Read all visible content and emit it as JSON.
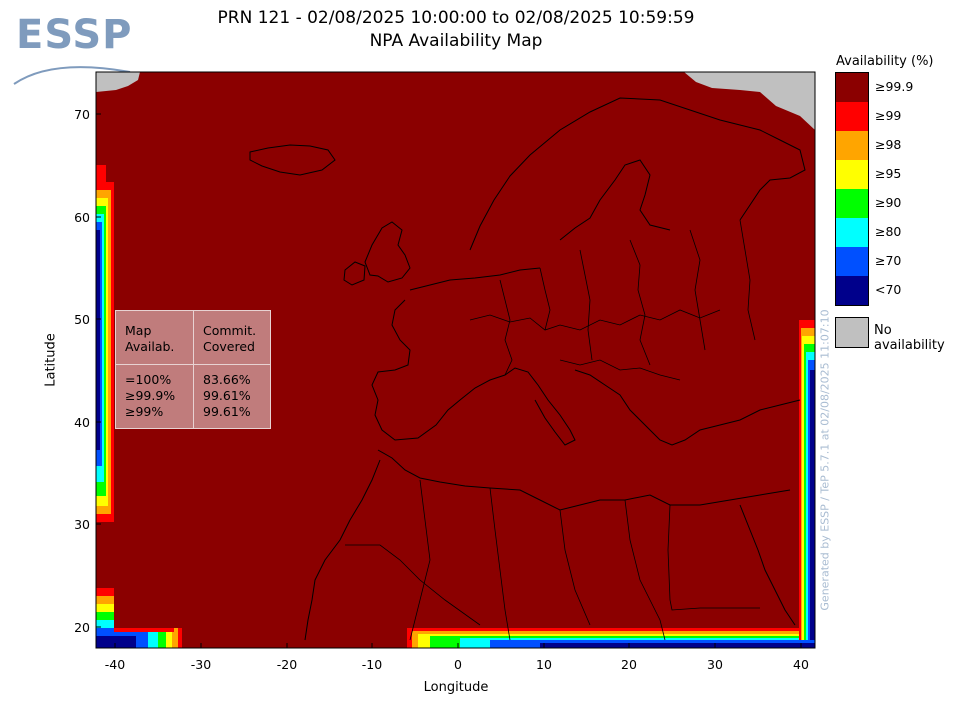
{
  "header": {
    "logo_text": "ESSP",
    "title_line1": "PRN 121 - 02/08/2025 10:00:00 to 02/08/2025 10:59:59",
    "title_line2": "NPA Availability Map"
  },
  "axes": {
    "xlabel": "Longitude",
    "ylabel": "Latitude",
    "x_ticks": [
      "-40",
      "-30",
      "-20",
      "-10",
      "0",
      "10",
      "20",
      "30",
      "40"
    ],
    "y_ticks": [
      "70",
      "60",
      "50",
      "40",
      "30",
      "20"
    ],
    "lon_range": [
      -42,
      41
    ],
    "lat_range": [
      18,
      74.5
    ]
  },
  "legend": {
    "title": "Availability (%)",
    "items": [
      {
        "label": "≥99.9",
        "color": "#8b0000"
      },
      {
        "label": "≥99",
        "color": "#ff0000"
      },
      {
        "label": "≥98",
        "color": "#ffa500"
      },
      {
        "label": "≥95",
        "color": "#ffff00"
      },
      {
        "label": "≥90",
        "color": "#00ff00"
      },
      {
        "label": "≥80",
        "color": "#00ffff"
      },
      {
        "label": "≥70",
        "color": "#0050ff"
      },
      {
        "label": "<70",
        "color": "#00008b"
      }
    ],
    "no_availability_label": "No availability",
    "no_availability_color": "#c0c0c0"
  },
  "stats": {
    "header_col1": "Map\nAvailab.",
    "header_col2": "Commit.\nCovered",
    "rows_col1": "=100%\n≥99.9%\n≥99%",
    "rows_col2": "83.66%\n99.61%\n99.61%"
  },
  "watermark": "Generated by ESSP / TeP 5.7.1 at 02/08/2025 11:07:10"
}
